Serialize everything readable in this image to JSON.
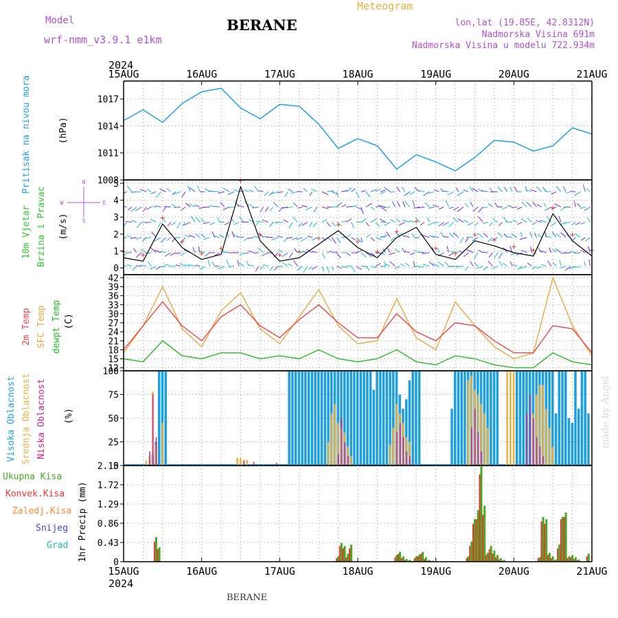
{
  "header": {
    "model_label": "Model",
    "model_name": "wrf-nmm_v3.9.1  e1km",
    "station": "BERANE",
    "product": "Meteogram",
    "coords": "lon,lat (19.85E, 42.8312N)",
    "elevation": "Nadmorska Visina 691m",
    "model_elevation": "Nadmorska Visina u modelu 722.934m",
    "year_top": "2024",
    "year_bottom": "2024",
    "footer_station": "BERANE",
    "credit": "made by Angel"
  },
  "dates": [
    "15AUG",
    "16AUG",
    "17AUG",
    "18AUG",
    "19AUG",
    "20AUG",
    "21AUG"
  ],
  "colors": {
    "pressure": "#1ea0e0",
    "wind_label": "#2ec82e",
    "wind_speed": "#000000",
    "wind_gust": "#ee3333",
    "t2m": "#ee4444",
    "tsfc": "#e8a840",
    "dewpt": "#22bb22",
    "cloud_high": "#1ea0e0",
    "cloud_mid": "#e8b040",
    "cloud_low": "#d02090",
    "precip_total": "#44aa22",
    "precip_conv": "#ee3333",
    "precip_frz": "#ff8833",
    "precip_snow": "#4444dd",
    "precip_grad": "#22bbaa",
    "header_purple": "#b050d0",
    "meteogram": "#e8b040"
  },
  "chart_data": [
    {
      "type": "line",
      "panel": "pressure",
      "ylabel_1": "Pritisak na nivou mora",
      "ylabel_unit": "(hPa)",
      "y_ticks": [
        "1008",
        "1011",
        "1014",
        "1017"
      ],
      "ylim": [
        1008,
        1019
      ],
      "x_hours": [
        0,
        6,
        12,
        18,
        24,
        30,
        36,
        42,
        48,
        54,
        60,
        66,
        72,
        78,
        84,
        90,
        96,
        102,
        108,
        114,
        120,
        126,
        132,
        138,
        144
      ],
      "series": [
        {
          "values": [
            1014.6,
            1015.8,
            1014.4,
            1016.5,
            1017.8,
            1018.2,
            1016.0,
            1014.8,
            1016.4,
            1016.2,
            1014.2,
            1011.5,
            1012.6,
            1011.8,
            1009.2,
            1010.8,
            1010.0,
            1009.0,
            1010.5,
            1012.4,
            1012.2,
            1011.2,
            1011.8,
            1013.8,
            1013.1
          ]
        }
      ]
    },
    {
      "type": "line",
      "panel": "wind",
      "ylabel_1": "10m Vjetar",
      "ylabel_2": "Brzina i Pravac",
      "ylabel_unit": "(m/s)",
      "compass": {
        "n": "N",
        "s": "S",
        "e": "E",
        "w": "W"
      },
      "y_ticks": [
        "0",
        "1",
        "2",
        "3",
        "4",
        "5"
      ],
      "ylim": [
        -0.4,
        5.2
      ],
      "x_hours": [
        0,
        6,
        12,
        18,
        24,
        30,
        36,
        42,
        48,
        54,
        60,
        66,
        72,
        78,
        84,
        90,
        96,
        102,
        108,
        114,
        120,
        126,
        132,
        138,
        144
      ],
      "series": [
        {
          "values": [
            0.6,
            0.4,
            2.6,
            1.2,
            0.5,
            0.8,
            4.8,
            1.6,
            0.4,
            0.6,
            1.4,
            2.2,
            1.2,
            0.6,
            1.8,
            2.4,
            0.8,
            0.5,
            1.6,
            1.3,
            0.9,
            0.7,
            3.2,
            1.6,
            0.7
          ]
        }
      ]
    },
    {
      "type": "line",
      "panel": "temperature",
      "ylabel_1": "2m Temp",
      "ylabel_2": "SFC Temp",
      "ylabel_3": "dewpt Temp",
      "ylabel_unit": "(C)",
      "y_ticks": [
        "12",
        "15",
        "18",
        "21",
        "24",
        "27",
        "30",
        "33",
        "36",
        "39",
        "42"
      ],
      "ylim": [
        11,
        43
      ],
      "x_hours": [
        0,
        6,
        12,
        18,
        24,
        30,
        36,
        42,
        48,
        54,
        60,
        66,
        72,
        78,
        84,
        90,
        96,
        102,
        108,
        114,
        120,
        126,
        132,
        138,
        144
      ],
      "series": [
        {
          "values": [
            18,
            26,
            34,
            26,
            21,
            29,
            33,
            26,
            22,
            28,
            33,
            27,
            22,
            22,
            30,
            24,
            21,
            27,
            26,
            21,
            17,
            17,
            26,
            25,
            17
          ]
        },
        {
          "values": [
            17,
            26,
            39,
            25,
            19,
            31,
            37,
            25,
            20,
            29,
            38,
            26,
            20,
            21,
            35,
            22,
            18,
            34,
            26,
            19,
            15,
            17,
            42,
            26,
            16
          ]
        },
        {
          "values": [
            15,
            14,
            21,
            16,
            15,
            17,
            17,
            15,
            16,
            15,
            18,
            15,
            14,
            15,
            18,
            14,
            13,
            16,
            15,
            13,
            12,
            12,
            17,
            14,
            13
          ]
        }
      ]
    },
    {
      "type": "bar",
      "panel": "cloud",
      "ylabel_1": "Visoka Oblacnost",
      "ylabel_2": "Srednja Oblacnost",
      "ylabel_3": "Niska Oblacnost",
      "ylabel_unit": "(%)",
      "y_ticks": [
        "0",
        "25",
        "50",
        "75",
        "100"
      ],
      "ylim": [
        0,
        100
      ],
      "high_hours": [
        9,
        10,
        11,
        12,
        13,
        51,
        52,
        53,
        54,
        55,
        56,
        57,
        58,
        59,
        60,
        61,
        62,
        63,
        64,
        65,
        66,
        67,
        68,
        69,
        70,
        71,
        72,
        73,
        74,
        75,
        76,
        77,
        78,
        79,
        80,
        81,
        82,
        83,
        84,
        85,
        86,
        87,
        88,
        89,
        90,
        91,
        101,
        102,
        103,
        104,
        105,
        106,
        107,
        108,
        109,
        110,
        111,
        112,
        113,
        114,
        115,
        121,
        122,
        123,
        124,
        125,
        126,
        127,
        128,
        129,
        130,
        131,
        132,
        133,
        134,
        135,
        136,
        137,
        138,
        139,
        140,
        141,
        142,
        143
      ],
      "high_values": [
        12,
        25,
        100,
        100,
        100,
        100,
        100,
        100,
        100,
        100,
        100,
        100,
        100,
        100,
        100,
        100,
        100,
        100,
        100,
        100,
        100,
        100,
        100,
        100,
        100,
        100,
        100,
        100,
        100,
        100,
        100,
        80,
        100,
        100,
        100,
        100,
        100,
        100,
        100,
        75,
        60,
        70,
        90,
        100,
        100,
        100,
        60,
        100,
        100,
        100,
        100,
        100,
        100,
        100,
        100,
        100,
        100,
        100,
        100,
        100,
        100,
        100,
        100,
        100,
        100,
        100,
        100,
        100,
        100,
        100,
        100,
        100,
        100,
        55,
        100,
        100,
        100,
        50,
        45,
        100,
        60,
        100,
        100,
        55
      ],
      "mid_hours": [
        7,
        8,
        9,
        10,
        12,
        35,
        36,
        37,
        38,
        63,
        64,
        65,
        66,
        67,
        68,
        69,
        70,
        82,
        83,
        84,
        85,
        86,
        87,
        88,
        106,
        107,
        108,
        109,
        110,
        111,
        112,
        118,
        119,
        120,
        126,
        127,
        128,
        129,
        130,
        131,
        132
      ],
      "mid_values": [
        5,
        10,
        78,
        22,
        45,
        8,
        8,
        6,
        6,
        25,
        55,
        65,
        45,
        40,
        35,
        20,
        10,
        22,
        40,
        65,
        55,
        45,
        30,
        25,
        90,
        95,
        80,
        75,
        65,
        55,
        40,
        100,
        100,
        100,
        55,
        75,
        85,
        85,
        60,
        40,
        20
      ],
      "low_hours": [
        8,
        9,
        10,
        37,
        40,
        47,
        66,
        67,
        68,
        69,
        84,
        85,
        86,
        87,
        88,
        107,
        108,
        109,
        110,
        124,
        125,
        126,
        127,
        128,
        129
      ],
      "low_values": [
        15,
        75,
        30,
        5,
        4,
        3,
        12,
        50,
        25,
        10,
        35,
        45,
        30,
        15,
        10,
        40,
        60,
        35,
        15,
        55,
        75,
        50,
        30,
        20,
        10
      ]
    },
    {
      "type": "bar",
      "panel": "precip",
      "ylabel_unit": "1hr Precip (mm)",
      "legend": [
        "Ukupna Kisa",
        "Konvek.Kisa",
        "Zaledj.Kisa",
        "Snijeg",
        "Grad"
      ],
      "y_ticks": [
        "0",
        "0.43",
        "0.86",
        "1.29",
        "1.72",
        "2.15"
      ],
      "ylim": [
        0,
        2.15
      ],
      "hours": [
        10,
        11,
        66,
        67,
        68,
        69,
        70,
        84,
        85,
        86,
        87,
        88,
        89,
        90,
        91,
        92,
        93,
        94,
        95,
        106,
        107,
        108,
        109,
        110,
        111,
        112,
        113,
        114,
        115,
        116,
        117,
        128,
        129,
        130,
        131,
        132,
        133,
        134,
        135,
        136,
        137,
        138,
        139,
        140,
        143
      ],
      "totals": [
        0.55,
        0.32,
        0.12,
        0.42,
        0.35,
        0.18,
        0.38,
        0.15,
        0.22,
        0.12,
        0.06,
        0.04,
        0.02,
        0.12,
        0.16,
        0.22,
        0.1,
        0.04,
        0.02,
        0.12,
        0.45,
        0.95,
        1.15,
        2.15,
        1.25,
        0.2,
        0.35,
        0.25,
        0.15,
        0.08,
        0.04,
        0.1,
        1.0,
        0.95,
        0.2,
        0.12,
        0.05,
        0.38,
        1.0,
        1.1,
        0.12,
        0.15,
        0.1,
        0.05,
        0.18
      ],
      "conv": [
        0.45,
        0.28,
        0.08,
        0.35,
        0.3,
        0.1,
        0.3,
        0.1,
        0.18,
        0.08,
        0.04,
        0.02,
        0.01,
        0.08,
        0.12,
        0.18,
        0.06,
        0.02,
        0.01,
        0.08,
        0.35,
        0.85,
        0.95,
        1.95,
        1.05,
        0.15,
        0.28,
        0.18,
        0.1,
        0.05,
        0.02,
        0.08,
        0.9,
        0.85,
        0.15,
        0.08,
        0.03,
        0.3,
        0.95,
        1.0,
        0.08,
        0.1,
        0.06,
        0.03,
        0.12
      ]
    }
  ]
}
